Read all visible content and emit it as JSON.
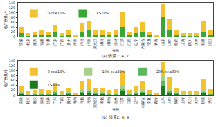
{
  "chart_data": [
    {
      "type": "bar",
      "title": "(a) 情景1: 4, 7",
      "x_label": "省份",
      "y_label": "电厂数量/个",
      "stacked": true,
      "legend": "upper left",
      "grid": false,
      "categories": [
        "安徽",
        "北京",
        "重庆",
        "福建",
        "甘肃",
        "广东",
        "广西",
        "贵州",
        "海南",
        "河北",
        "河南",
        "黑龙江",
        "湖北",
        "湖南",
        "吉林",
        "江苏",
        "江西",
        "辽宁",
        "内蒙古",
        "宁夏",
        "青海",
        "山东",
        "山西",
        "陕西",
        "上海",
        "四川",
        "天津",
        "新疆",
        "浙江"
      ],
      "ylim": [
        0,
        140
      ],
      "yticks": [
        0,
        20,
        40,
        60,
        80,
        100,
        120,
        140
      ],
      "series": [
        {
          "name": "ε>10%",
          "color": "#3aa635",
          "values": [
            14,
            5,
            7,
            9,
            7,
            17,
            5,
            10,
            3,
            20,
            25,
            10,
            10,
            7,
            9,
            40,
            7,
            14,
            22,
            7,
            2,
            80,
            25,
            10,
            5,
            5,
            5,
            22,
            9
          ]
        },
        {
          "name": "0<ε≤10%",
          "color": "#f2c230",
          "values": [
            26,
            10,
            13,
            16,
            13,
            33,
            10,
            20,
            5,
            35,
            40,
            20,
            20,
            13,
            16,
            60,
            13,
            26,
            38,
            13,
            3,
            55,
            50,
            20,
            10,
            10,
            10,
            43,
            16
          ]
        }
      ]
    },
    {
      "type": "bar",
      "title": "(b) 情景2: 6, 9",
      "x_label": "省份",
      "y_label": "电厂数量/个",
      "stacked": true,
      "legend": "upper left",
      "grid": false,
      "categories": [
        "安徽",
        "北京",
        "重庆",
        "福建",
        "甘肃",
        "广东",
        "广西",
        "贵州",
        "海南",
        "河北",
        "河南",
        "黑龙江",
        "湖北",
        "湖南",
        "吉林",
        "江苏",
        "江西",
        "辽宁",
        "内蒙古",
        "宁夏",
        "青海",
        "山东",
        "山西",
        "陕西",
        "上海",
        "四川",
        "天津",
        "新疆",
        "浙江"
      ],
      "ylim": [
        0,
        140
      ],
      "yticks": [
        0,
        20,
        40,
        60,
        80,
        100,
        120,
        140
      ],
      "series": [
        {
          "name": "ε>30%",
          "color": "#1f7a1f",
          "values": [
            5,
            2,
            3,
            3,
            3,
            6,
            2,
            4,
            1,
            7,
            9,
            4,
            4,
            3,
            3,
            15,
            3,
            5,
            8,
            3,
            1,
            35,
            9,
            4,
            2,
            2,
            2,
            8,
            3
          ]
        },
        {
          "name": "20%<ε≤30%",
          "color": "#5cb85c",
          "values": [
            4,
            1,
            2,
            3,
            2,
            5,
            1,
            3,
            1,
            6,
            7,
            3,
            3,
            2,
            3,
            10,
            2,
            4,
            6,
            2,
            0,
            20,
            7,
            3,
            1,
            1,
            1,
            6,
            3
          ]
        },
        {
          "name": "10%<ε≤20%",
          "color": "#a8d08d",
          "values": [
            5,
            2,
            2,
            3,
            2,
            6,
            2,
            3,
            1,
            7,
            9,
            3,
            3,
            2,
            3,
            15,
            2,
            5,
            8,
            2,
            1,
            25,
            9,
            3,
            2,
            2,
            2,
            8,
            3
          ]
        },
        {
          "name": "0<ε≤10%",
          "color": "#f2c230",
          "values": [
            26,
            10,
            13,
            16,
            13,
            33,
            10,
            20,
            5,
            35,
            40,
            20,
            20,
            13,
            16,
            60,
            13,
            26,
            38,
            13,
            3,
            55,
            50,
            20,
            10,
            10,
            10,
            43,
            16
          ]
        }
      ]
    }
  ]
}
